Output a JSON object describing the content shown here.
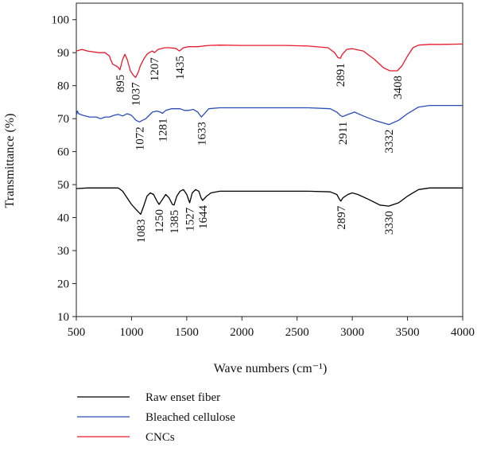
{
  "chart_data": {
    "type": "line",
    "xlabel": "Wave numbers (cm⁻¹)",
    "ylabel": "Transmittance (%)",
    "xlim": [
      500,
      4000
    ],
    "ylim": [
      10,
      105
    ],
    "xticks": [
      500,
      1000,
      1500,
      2000,
      2500,
      3000,
      3500,
      4000
    ],
    "yticks": [
      10,
      20,
      30,
      40,
      50,
      60,
      70,
      80,
      90,
      100
    ],
    "grid": false,
    "legend_position": "bottom-left, below the plot",
    "series": [
      {
        "name": "Raw enset fiber",
        "color": "#000000",
        "points": [
          [
            500,
            48.8
          ],
          [
            600,
            49
          ],
          [
            700,
            49
          ],
          [
            800,
            49
          ],
          [
            880,
            49
          ],
          [
            920,
            48
          ],
          [
            960,
            46
          ],
          [
            1000,
            44
          ],
          [
            1040,
            42.5
          ],
          [
            1083,
            41
          ],
          [
            1110,
            43.5
          ],
          [
            1140,
            46.5
          ],
          [
            1170,
            47.5
          ],
          [
            1200,
            47
          ],
          [
            1230,
            45
          ],
          [
            1250,
            44
          ],
          [
            1280,
            45.5
          ],
          [
            1310,
            47
          ],
          [
            1340,
            46
          ],
          [
            1370,
            44
          ],
          [
            1385,
            43.8
          ],
          [
            1410,
            46.5
          ],
          [
            1440,
            48
          ],
          [
            1470,
            48.5
          ],
          [
            1500,
            47
          ],
          [
            1527,
            44.5
          ],
          [
            1550,
            47.5
          ],
          [
            1580,
            48.5
          ],
          [
            1610,
            48
          ],
          [
            1630,
            46
          ],
          [
            1644,
            45.2
          ],
          [
            1680,
            46.5
          ],
          [
            1720,
            47.5
          ],
          [
            1800,
            48
          ],
          [
            2000,
            48
          ],
          [
            2200,
            48
          ],
          [
            2400,
            48
          ],
          [
            2600,
            48
          ],
          [
            2800,
            47.8
          ],
          [
            2860,
            47
          ],
          [
            2885,
            45.5
          ],
          [
            2897,
            45
          ],
          [
            2915,
            46
          ],
          [
            2960,
            47
          ],
          [
            3000,
            47.5
          ],
          [
            3050,
            47
          ],
          [
            3150,
            45.5
          ],
          [
            3250,
            43.8
          ],
          [
            3330,
            43.5
          ],
          [
            3420,
            44.5
          ],
          [
            3500,
            46.5
          ],
          [
            3600,
            48.5
          ],
          [
            3700,
            49
          ],
          [
            3800,
            49
          ],
          [
            4000,
            49
          ]
        ]
      },
      {
        "name": "Bleached cellulose",
        "color": "#2a4db8",
        "points": [
          [
            500,
            71
          ],
          [
            510,
            72.3
          ],
          [
            520,
            71.5
          ],
          [
            560,
            71
          ],
          [
            620,
            70.5
          ],
          [
            680,
            70.5
          ],
          [
            720,
            70
          ],
          [
            760,
            70.5
          ],
          [
            800,
            70.5
          ],
          [
            840,
            71
          ],
          [
            880,
            71.3
          ],
          [
            920,
            70.8
          ],
          [
            960,
            71.5
          ],
          [
            1000,
            71
          ],
          [
            1040,
            69.5
          ],
          [
            1072,
            69
          ],
          [
            1100,
            69.5
          ],
          [
            1130,
            70
          ],
          [
            1160,
            71
          ],
          [
            1190,
            72
          ],
          [
            1230,
            72.3
          ],
          [
            1260,
            72
          ],
          [
            1281,
            71.6
          ],
          [
            1310,
            72.5
          ],
          [
            1360,
            73
          ],
          [
            1400,
            73
          ],
          [
            1440,
            73
          ],
          [
            1480,
            72.5
          ],
          [
            1520,
            72.5
          ],
          [
            1560,
            72.8
          ],
          [
            1600,
            72
          ],
          [
            1633,
            70.5
          ],
          [
            1660,
            71.5
          ],
          [
            1700,
            73
          ],
          [
            1800,
            73.3
          ],
          [
            2000,
            73.3
          ],
          [
            2200,
            73.3
          ],
          [
            2400,
            73.3
          ],
          [
            2600,
            73.3
          ],
          [
            2800,
            73
          ],
          [
            2860,
            72
          ],
          [
            2890,
            71
          ],
          [
            2911,
            70.6
          ],
          [
            2940,
            71
          ],
          [
            2980,
            71.5
          ],
          [
            3020,
            72
          ],
          [
            3100,
            70.8
          ],
          [
            3200,
            69.5
          ],
          [
            3332,
            68.2
          ],
          [
            3420,
            69.5
          ],
          [
            3500,
            71.5
          ],
          [
            3600,
            73.5
          ],
          [
            3700,
            74
          ],
          [
            3800,
            74
          ],
          [
            4000,
            74
          ]
        ]
      },
      {
        "name": "CNCs",
        "color": "#e8192c",
        "points": [
          [
            500,
            90.5
          ],
          [
            550,
            91
          ],
          [
            600,
            90.5
          ],
          [
            700,
            90
          ],
          [
            760,
            90
          ],
          [
            800,
            89
          ],
          [
            810,
            88
          ],
          [
            830,
            86.5
          ],
          [
            860,
            86
          ],
          [
            880,
            85.5
          ],
          [
            895,
            84.8
          ],
          [
            920,
            88
          ],
          [
            940,
            89.5
          ],
          [
            960,
            88
          ],
          [
            990,
            84.5
          ],
          [
            1020,
            83
          ],
          [
            1037,
            82.5
          ],
          [
            1060,
            84
          ],
          [
            1080,
            86
          ],
          [
            1110,
            88
          ],
          [
            1140,
            89.5
          ],
          [
            1160,
            90
          ],
          [
            1190,
            90.5
          ],
          [
            1207,
            90
          ],
          [
            1240,
            91
          ],
          [
            1300,
            91.5
          ],
          [
            1340,
            91.5
          ],
          [
            1400,
            91.3
          ],
          [
            1435,
            90.5
          ],
          [
            1470,
            91.5
          ],
          [
            1520,
            91.8
          ],
          [
            1600,
            91.8
          ],
          [
            1700,
            92.2
          ],
          [
            1800,
            92.3
          ],
          [
            2000,
            92.2
          ],
          [
            2200,
            92.2
          ],
          [
            2400,
            92.2
          ],
          [
            2600,
            92
          ],
          [
            2780,
            91.5
          ],
          [
            2840,
            90
          ],
          [
            2870,
            88.5
          ],
          [
            2891,
            88.3
          ],
          [
            2910,
            89.5
          ],
          [
            2950,
            91
          ],
          [
            3000,
            91.2
          ],
          [
            3100,
            90.5
          ],
          [
            3200,
            88
          ],
          [
            3280,
            85.5
          ],
          [
            3340,
            84.5
          ],
          [
            3408,
            84.5
          ],
          [
            3450,
            86
          ],
          [
            3500,
            89
          ],
          [
            3550,
            91.5
          ],
          [
            3600,
            92.3
          ],
          [
            3700,
            92.5
          ],
          [
            3800,
            92.5
          ],
          [
            4000,
            92.6
          ]
        ]
      }
    ],
    "annotations": [
      {
        "text": "895",
        "x": 895,
        "series": "CNCs"
      },
      {
        "text": "1037",
        "x": 1037,
        "series": "CNCs"
      },
      {
        "text": "1207",
        "x": 1207,
        "series": "CNCs"
      },
      {
        "text": "1435",
        "x": 1435,
        "series": "CNCs"
      },
      {
        "text": "2891",
        "x": 2891,
        "series": "CNCs"
      },
      {
        "text": "3408",
        "x": 3408,
        "series": "CNCs"
      },
      {
        "text": "1072",
        "x": 1072,
        "series": "Bleached cellulose"
      },
      {
        "text": "1281",
        "x": 1281,
        "series": "Bleached cellulose"
      },
      {
        "text": "1633",
        "x": 1633,
        "series": "Bleached cellulose"
      },
      {
        "text": "2911",
        "x": 2911,
        "series": "Bleached cellulose"
      },
      {
        "text": "3332",
        "x": 3332,
        "series": "Bleached cellulose"
      },
      {
        "text": "1083",
        "x": 1083,
        "series": "Raw enset fiber"
      },
      {
        "text": "1250",
        "x": 1250,
        "series": "Raw enset fiber"
      },
      {
        "text": "1385",
        "x": 1385,
        "series": "Raw enset fiber"
      },
      {
        "text": "1527",
        "x": 1527,
        "series": "Raw enset fiber"
      },
      {
        "text": "1644",
        "x": 1644,
        "series": "Raw enset fiber"
      },
      {
        "text": "2897",
        "x": 2897,
        "series": "Raw enset fiber"
      },
      {
        "text": "3330",
        "x": 3330,
        "series": "Raw enset fiber"
      }
    ]
  }
}
